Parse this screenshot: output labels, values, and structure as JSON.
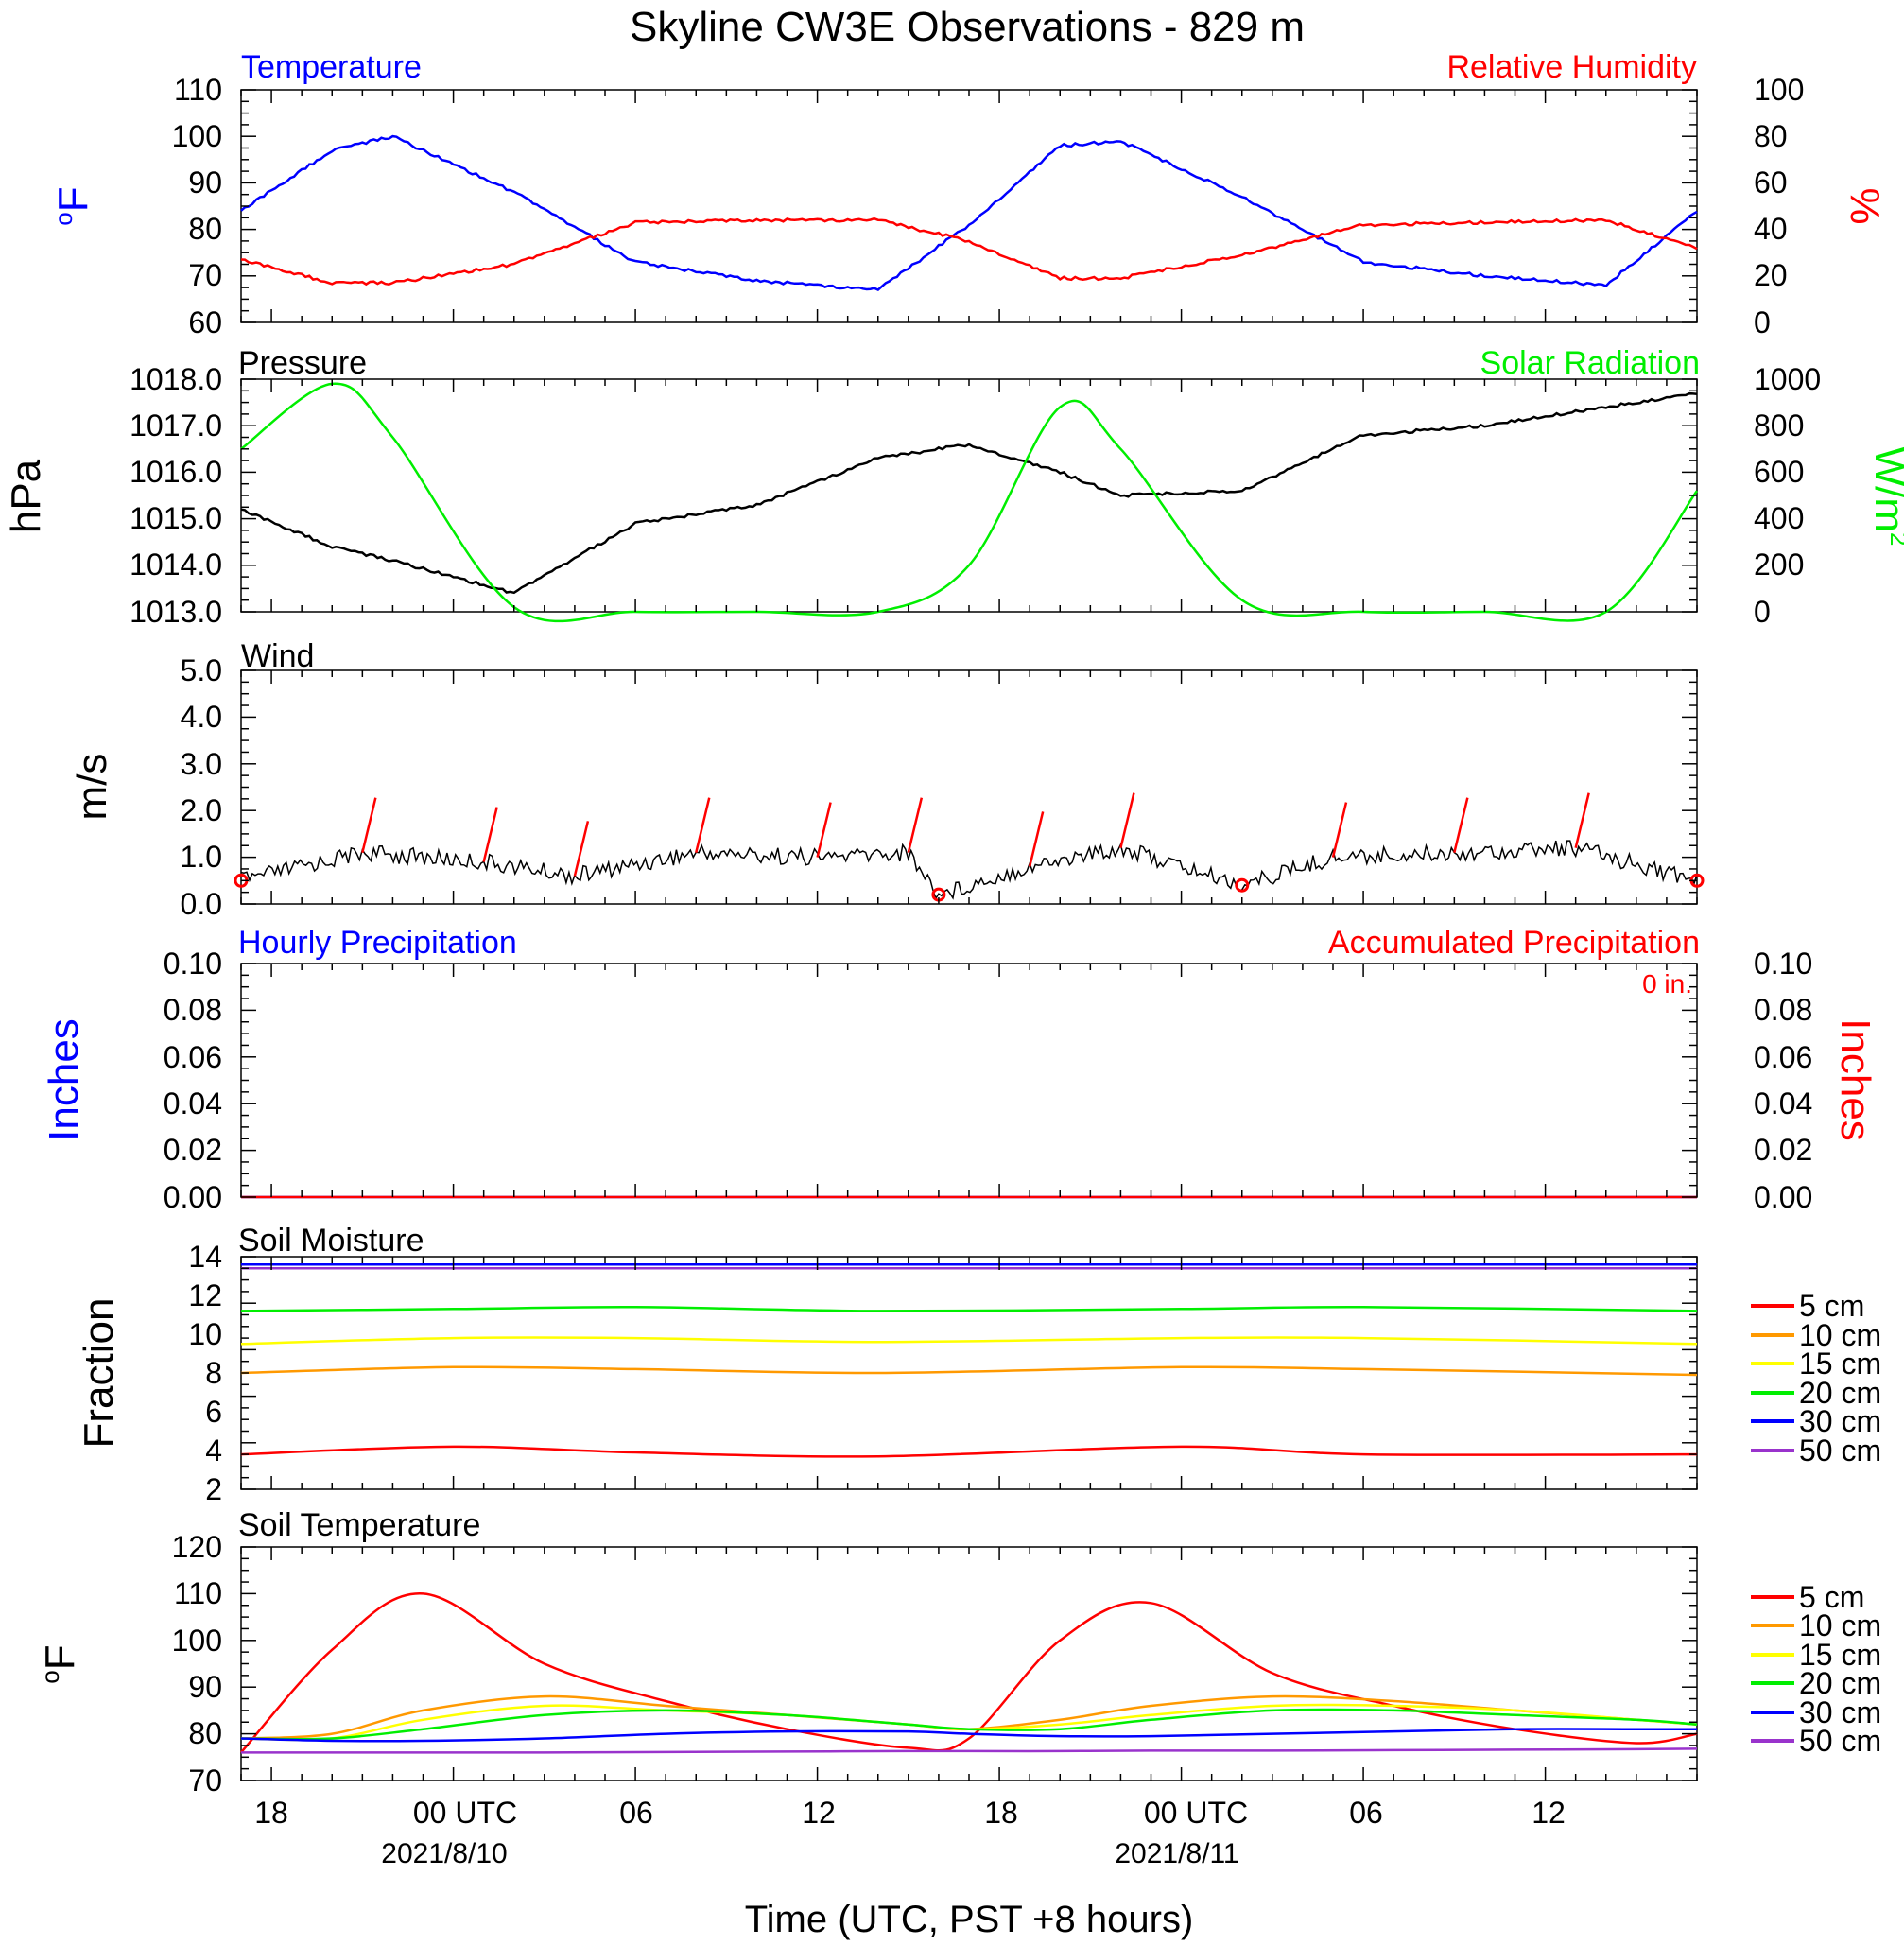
{
  "page": {
    "title": "Skyline CW3E Observations - 829 m",
    "xlabel": "Time (UTC, PST +8 hours)",
    "x_tick_labels": [
      "18",
      "00 UTC",
      "06",
      "12",
      "18",
      "00 UTC",
      "06",
      "12"
    ],
    "date_labels": [
      "2021/8/10",
      "2021/8/11"
    ]
  },
  "panels": {
    "temperature": {
      "left_title": "Temperature",
      "right_title": "Relative Humidity",
      "left_unit": "F",
      "left_unit_sup": "o",
      "right_unit": "%",
      "left_ticks": [
        "110",
        "100",
        "90",
        "80",
        "70",
        "60"
      ],
      "right_ticks": [
        "100",
        "80",
        "60",
        "40",
        "20",
        "0"
      ]
    },
    "pressure": {
      "left_title": "Pressure",
      "right_title": "Solar Radiation",
      "left_unit": "hPa",
      "right_unit": "W/m",
      "right_unit_sup": "2",
      "left_ticks": [
        "1018.0",
        "1017.0",
        "1016.0",
        "1015.0",
        "1014.0",
        "1013.0"
      ],
      "right_ticks": [
        "1000",
        "800",
        "600",
        "400",
        "200",
        "0"
      ]
    },
    "wind": {
      "left_title": "Wind",
      "left_unit": "m/s",
      "left_ticks": [
        "5.0",
        "4.0",
        "3.0",
        "2.0",
        "1.0",
        "0.0"
      ]
    },
    "precip": {
      "left_title": "Hourly Precipitation",
      "right_title": "Accumulated Precipitation",
      "accum_label": "0 in.",
      "left_unit": "Inches",
      "right_unit": "Inches",
      "left_ticks": [
        "0.10",
        "0.08",
        "0.06",
        "0.04",
        "0.02",
        "0.00"
      ],
      "right_ticks": [
        "0.10",
        "0.08",
        "0.06",
        "0.04",
        "0.02",
        "0.00"
      ]
    },
    "soil_moisture": {
      "left_title": "Soil Moisture",
      "left_unit": "Fraction",
      "left_ticks": [
        "14",
        "12",
        "10",
        "8",
        "6",
        "4",
        "2"
      ],
      "legend": [
        "5 cm",
        "10 cm",
        "15 cm",
        "20 cm",
        "30 cm",
        "50 cm"
      ]
    },
    "soil_temperature": {
      "left_title": "Soil Temperature",
      "left_unit": "F",
      "left_unit_sup": "o",
      "left_ticks": [
        "120",
        "110",
        "100",
        "90",
        "80",
        "70"
      ],
      "legend": [
        "5 cm",
        "10 cm",
        "15 cm",
        "20 cm",
        "30 cm",
        "50 cm"
      ]
    }
  },
  "colors": {
    "blue": "#0000ff",
    "red": "#ff0000",
    "green": "#00ee00",
    "black": "#000000",
    "orange": "#ff9900",
    "yellow": "#ffff00",
    "purple": "#9933cc"
  },
  "chart_data": [
    {
      "type": "line",
      "title": "Temperature / Relative Humidity",
      "x": [
        "2021-08-09 17:00",
        "2021-08-09 20:00",
        "2021-08-09 22:00",
        "2021-08-10 02:00",
        "2021-08-10 06:00",
        "2021-08-10 10:00",
        "2021-08-10 14:00",
        "2021-08-10 17:00",
        "2021-08-10 20:00",
        "2021-08-10 22:00",
        "2021-08-11 02:00",
        "2021-08-11 06:00",
        "2021-08-11 10:00",
        "2021-08-11 14:00",
        "2021-08-11 17:00"
      ],
      "series": [
        {
          "name": "Temperature",
          "values": [
            84,
            97,
            100,
            88,
            73,
            69,
            67,
            81,
            98,
            99,
            87,
            73,
            70,
            68,
            84
          ]
        },
        {
          "name": "Relative Humidity",
          "values": [
            27,
            17,
            17,
            25,
            43,
            44,
            44,
            35,
            19,
            19,
            29,
            42,
            43,
            44,
            32
          ]
        }
      ],
      "ylim": [
        60,
        110
      ],
      "y2lim": [
        0,
        100
      ]
    },
    {
      "type": "line",
      "title": "Pressure / Solar Radiation",
      "x": [
        "2021-08-09 17:00",
        "2021-08-09 20:00",
        "2021-08-09 22:00",
        "2021-08-10 02:00",
        "2021-08-10 06:00",
        "2021-08-10 10:00",
        "2021-08-10 14:00",
        "2021-08-10 17:00",
        "2021-08-10 20:00",
        "2021-08-10 22:00",
        "2021-08-11 02:00",
        "2021-08-11 06:00",
        "2021-08-11 10:00",
        "2021-08-11 14:00",
        "2021-08-11 17:00"
      ],
      "series": [
        {
          "name": "Pressure",
          "values": [
            1015.2,
            1014.4,
            1014.1,
            1013.4,
            1014.9,
            1015.3,
            1016.3,
            1016.6,
            1016.0,
            1015.5,
            1015.6,
            1016.8,
            1017.0,
            1017.4,
            1017.7
          ]
        },
        {
          "name": "Solar Radiation",
          "values": [
            700,
            980,
            750,
            20,
            0,
            0,
            0,
            200,
            880,
            700,
            50,
            0,
            0,
            0,
            520
          ]
        }
      ],
      "ylim": [
        1013.0,
        1018.0
      ],
      "y2lim": [
        0,
        1000
      ]
    },
    {
      "type": "line",
      "title": "Wind",
      "x": [
        "2021-08-09 17:00",
        "2021-08-09 21:00",
        "2021-08-10 01:00",
        "2021-08-10 04:00",
        "2021-08-10 08:00",
        "2021-08-10 12:00",
        "2021-08-10 15:00",
        "2021-08-10 16:00",
        "2021-08-10 19:00",
        "2021-08-10 22:00",
        "2021-08-11 02:00",
        "2021-08-11 05:00",
        "2021-08-11 09:00",
        "2021-08-11 13:00",
        "2021-08-11 17:00"
      ],
      "series": [
        {
          "name": "Wind",
          "values": [
            0.5,
            1.1,
            0.9,
            0.6,
            1.1,
            1.0,
            1.1,
            0.2,
            0.8,
            1.2,
            0.4,
            1.0,
            1.1,
            1.2,
            0.5
          ]
        }
      ],
      "ylim": [
        0.0,
        5.0
      ]
    },
    {
      "type": "line",
      "title": "Hourly Precipitation / Accumulated Precipitation",
      "x": [
        "2021-08-09 17:00",
        "2021-08-11 17:00"
      ],
      "series": [
        {
          "name": "Hourly Precipitation",
          "values": [
            0,
            0
          ]
        },
        {
          "name": "Accumulated Precipitation",
          "values": [
            0,
            0
          ]
        }
      ],
      "ylim": [
        0.0,
        0.1
      ]
    },
    {
      "type": "line",
      "title": "Soil Moisture",
      "x": [
        "2021-08-09 17:00",
        "2021-08-10 00:00",
        "2021-08-10 06:00",
        "2021-08-10 14:00",
        "2021-08-11 00:00",
        "2021-08-11 06:00",
        "2021-08-11 17:00"
      ],
      "series": [
        {
          "name": "5 cm",
          "values": [
            3.8,
            4.2,
            3.9,
            3.7,
            4.2,
            3.8,
            3.8
          ]
        },
        {
          "name": "10 cm",
          "values": [
            8.0,
            8.3,
            8.2,
            8.0,
            8.3,
            8.2,
            7.9
          ]
        },
        {
          "name": "15 cm",
          "values": [
            9.5,
            9.8,
            9.8,
            9.6,
            9.8,
            9.8,
            9.5
          ]
        },
        {
          "name": "20 cm",
          "values": [
            11.2,
            11.3,
            11.4,
            11.2,
            11.3,
            11.4,
            11.2
          ]
        },
        {
          "name": "30 cm",
          "values": [
            13.6,
            13.6,
            13.6,
            13.6,
            13.6,
            13.6,
            13.6
          ]
        },
        {
          "name": "50 cm",
          "values": [
            13.4,
            13.4,
            13.4,
            13.4,
            13.4,
            13.4,
            13.4
          ]
        }
      ],
      "ylim": [
        2,
        14
      ]
    },
    {
      "type": "line",
      "title": "Soil Temperature",
      "x": [
        "2021-08-09 17:00",
        "2021-08-09 20:00",
        "2021-08-09 23:00",
        "2021-08-10 03:00",
        "2021-08-10 07:00",
        "2021-08-10 11:00",
        "2021-08-10 15:00",
        "2021-08-10 17:00",
        "2021-08-10 20:00",
        "2021-08-10 23:00",
        "2021-08-11 03:00",
        "2021-08-11 07:00",
        "2021-08-11 11:00",
        "2021-08-11 15:00",
        "2021-08-11 17:00"
      ],
      "series": [
        {
          "name": "5 cm",
          "values": [
            76,
            98,
            110,
            95,
            87,
            81,
            77,
            79,
            100,
            108,
            93,
            86,
            81,
            78,
            80
          ]
        },
        {
          "name": "10 cm",
          "values": [
            79,
            80,
            85,
            88,
            86,
            84,
            82,
            81,
            83,
            86,
            88,
            87,
            85,
            83,
            82
          ]
        },
        {
          "name": "15 cm",
          "values": [
            79,
            79,
            83,
            86,
            85,
            84,
            82,
            81,
            82,
            84,
            86,
            86,
            85,
            83,
            82
          ]
        },
        {
          "name": "20 cm",
          "values": [
            79,
            79,
            81,
            84,
            85,
            84,
            82,
            81,
            81,
            83,
            85,
            85,
            84,
            83,
            82
          ]
        },
        {
          "name": "30 cm",
          "values": [
            79,
            78.5,
            78.5,
            79,
            80,
            80.5,
            80.5,
            80,
            79.5,
            79.5,
            80,
            80.5,
            81,
            81,
            81
          ]
        },
        {
          "name": "50 cm",
          "values": [
            76,
            76,
            76,
            76,
            76.1,
            76.2,
            76.3,
            76.3,
            76.3,
            76.4,
            76.4,
            76.5,
            76.6,
            76.7,
            76.8
          ]
        }
      ],
      "ylim": [
        70,
        120
      ]
    }
  ]
}
